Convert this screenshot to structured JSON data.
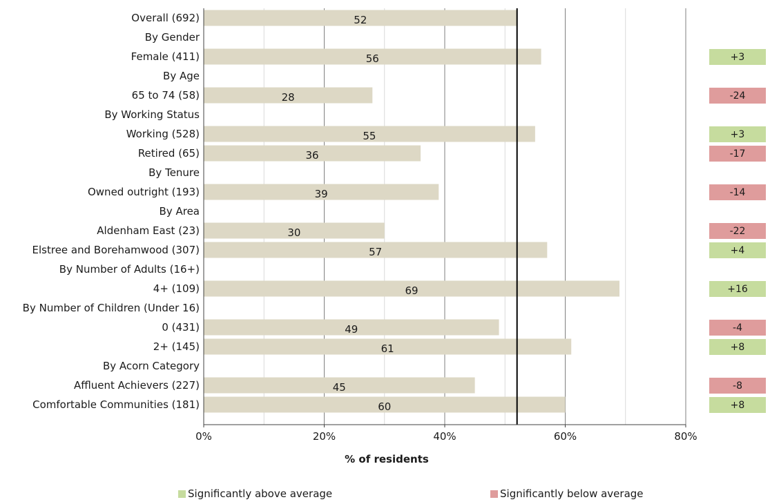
{
  "chart_data": {
    "type": "bar",
    "orientation": "horizontal",
    "xlabel": "% of residents",
    "xlim": [
      0,
      80
    ],
    "x_ticks": [
      "0%",
      "20%",
      "40%",
      "60%",
      "80%"
    ],
    "reference_line": 52,
    "rows": [
      {
        "label": "Overall (692)",
        "value": 52
      },
      {
        "label": "By Gender"
      },
      {
        "label": "Female (411)",
        "value": 56,
        "diff": "+3",
        "sig": "above"
      },
      {
        "label": "By Age"
      },
      {
        "label": "65 to 74 (58)",
        "value": 28,
        "diff": "-24",
        "sig": "below"
      },
      {
        "label": "By Working Status"
      },
      {
        "label": "Working (528)",
        "value": 55,
        "diff": "+3",
        "sig": "above"
      },
      {
        "label": "Retired (65)",
        "value": 36,
        "diff": "-17",
        "sig": "below"
      },
      {
        "label": "By Tenure"
      },
      {
        "label": "Owned outright (193)",
        "value": 39,
        "diff": "-14",
        "sig": "below"
      },
      {
        "label": "By Area"
      },
      {
        "label": "Aldenham East (23)",
        "value": 30,
        "diff": "-22",
        "sig": "below"
      },
      {
        "label": "Elstree and Borehamwood (307)",
        "value": 57,
        "diff": "+4",
        "sig": "above"
      },
      {
        "label": "By Number of Adults (16+)"
      },
      {
        "label": "4+ (109)",
        "value": 69,
        "diff": "+16",
        "sig": "above"
      },
      {
        "label": "By Number of Children (Under 16)"
      },
      {
        "label": "0 (431)",
        "value": 49,
        "diff": "-4",
        "sig": "below"
      },
      {
        "label": "2+ (145)",
        "value": 61,
        "diff": "+8",
        "sig": "above"
      },
      {
        "label": "By Acorn Category"
      },
      {
        "label": "Affluent Achievers (227)",
        "value": 45,
        "diff": "-8",
        "sig": "below"
      },
      {
        "label": "Comfortable Communities (181)",
        "value": 60,
        "diff": "+8",
        "sig": "above"
      }
    ],
    "legend": {
      "above": "Significantly above average",
      "below": "Significantly below average"
    },
    "colors": {
      "bar": "#ddd8c5",
      "above": "#c6dc9e",
      "below": "#df9c9c",
      "reference_line": "#000000",
      "grid": "#7f7f7f"
    }
  }
}
